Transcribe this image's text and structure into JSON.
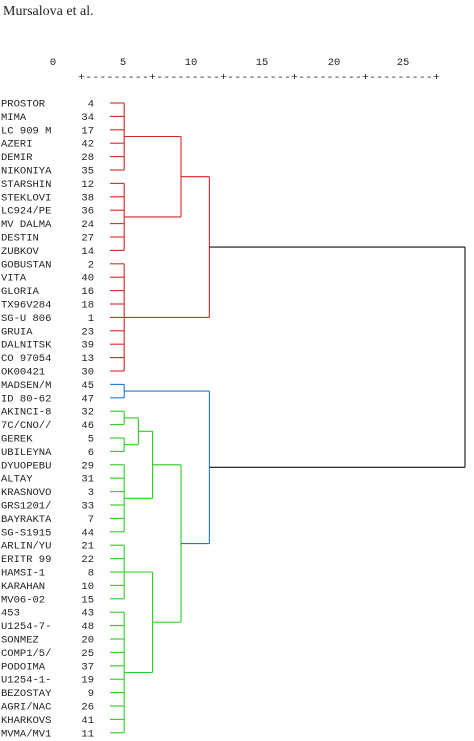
{
  "header": {
    "author": "Mursalova et al."
  },
  "scale": {
    "tick_labels": [
      "0",
      "5",
      "10",
      "15",
      "20",
      "25"
    ],
    "tick_values": [
      0,
      5,
      10,
      15,
      20,
      25
    ],
    "ruler": "+---------+---------+---------+---------+---------+"
  },
  "leaves": [
    {
      "name": "PROSTOR",
      "id": "4"
    },
    {
      "name": "MIMA",
      "id": "34"
    },
    {
      "name": "LC 909 M",
      "id": "17"
    },
    {
      "name": "AZERI",
      "id": "42"
    },
    {
      "name": "DEMIR",
      "id": "28"
    },
    {
      "name": "NIKONIYA",
      "id": "35"
    },
    {
      "name": "STARSHIN",
      "id": "12"
    },
    {
      "name": "STEKLOVI",
      "id": "38"
    },
    {
      "name": "LC924/PE",
      "id": "36"
    },
    {
      "name": "MV DALMA",
      "id": "24"
    },
    {
      "name": "DESTIN",
      "id": "27"
    },
    {
      "name": "ZUBKOV",
      "id": "14"
    },
    {
      "name": "GOBUSTAN",
      "id": "2"
    },
    {
      "name": "VITA",
      "id": "40"
    },
    {
      "name": "GLORIA",
      "id": "16"
    },
    {
      "name": "TX96V284",
      "id": "18"
    },
    {
      "name": "SG-U 806",
      "id": "1"
    },
    {
      "name": "GRUIA",
      "id": "23"
    },
    {
      "name": "DALNITSK",
      "id": "39"
    },
    {
      "name": "CO 97054",
      "id": "13"
    },
    {
      "name": "OK00421",
      "id": "30"
    },
    {
      "name": "MADSEN/M",
      "id": "45"
    },
    {
      "name": "ID 80-62",
      "id": "47"
    },
    {
      "name": "AKINCI-8",
      "id": "32"
    },
    {
      "name": "7C/CNO//",
      "id": "46"
    },
    {
      "name": "GEREK",
      "id": "5"
    },
    {
      "name": "UBILEYNA",
      "id": "6"
    },
    {
      "name": "DYUOPEBU",
      "id": "29"
    },
    {
      "name": "ALTAY",
      "id": "31"
    },
    {
      "name": "KRASNOVO",
      "id": "3"
    },
    {
      "name": "GRS1201/",
      "id": "33"
    },
    {
      "name": "BAYRAKTA",
      "id": "7"
    },
    {
      "name": "SG-S1915",
      "id": "44"
    },
    {
      "name": "ARLIN/YU",
      "id": "21"
    },
    {
      "name": "ERITR 99",
      "id": "22"
    },
    {
      "name": "HAMSI-1",
      "id": "8"
    },
    {
      "name": "KARAHAN",
      "id": "10"
    },
    {
      "name": "MV06-02",
      "id": "15"
    },
    {
      "name": "453",
      "id": "43"
    },
    {
      "name": "U1254-7-",
      "id": "48"
    },
    {
      "name": "SONMEZ",
      "id": "20"
    },
    {
      "name": "COMP1/5/",
      "id": "25"
    },
    {
      "name": "PODOIMA",
      "id": "37"
    },
    {
      "name": "U1254-1-",
      "id": "19"
    },
    {
      "name": "BEZOSTAY",
      "id": "9"
    },
    {
      "name": "AGRI/NAC",
      "id": "26"
    },
    {
      "name": "KHARKOVS",
      "id": "41"
    },
    {
      "name": "MVMA/MV1",
      "id": "11"
    }
  ],
  "clusters": [
    {
      "color": "#d62728",
      "leaf_range": [
        0,
        20
      ]
    },
    {
      "color": "#1f77d4",
      "leaf_range": [
        21,
        22
      ]
    },
    {
      "color": "#2ecc22",
      "leaf_range": [
        23,
        47
      ]
    }
  ],
  "merges": [
    {
      "color": "#d62728",
      "members": [
        0,
        1,
        2,
        3,
        4,
        5
      ],
      "distance": 1
    },
    {
      "color": "#d62728",
      "members": [
        6,
        7,
        8,
        9,
        10,
        11
      ],
      "distance": 1
    },
    {
      "color": "#d62728",
      "members": [
        12,
        13,
        14,
        15,
        16,
        17,
        18,
        19,
        20
      ],
      "distance": 1
    },
    {
      "color": "#d62728",
      "members": [
        [
          0,
          5
        ],
        [
          6,
          11
        ]
      ],
      "distance": 5
    },
    {
      "color": "#d62728",
      "members": [
        [
          0,
          11
        ],
        [
          12,
          20
        ]
      ],
      "distance": 7
    },
    {
      "color": "#1f77d4",
      "members": [
        21,
        22
      ],
      "distance": 1
    },
    {
      "color": "#2ecc22",
      "members": [
        23,
        24
      ],
      "distance": 1
    },
    {
      "color": "#2ecc22",
      "members": [
        25,
        26
      ],
      "distance": 1
    },
    {
      "color": "#2ecc22",
      "members": [
        27,
        28,
        29,
        30,
        31,
        32
      ],
      "distance": 1
    },
    {
      "color": "#2ecc22",
      "members": [
        33,
        34,
        35,
        36,
        37
      ],
      "distance": 1
    },
    {
      "color": "#2ecc22",
      "members": [
        38,
        39,
        40,
        41,
        42,
        43,
        44,
        45,
        46,
        47
      ],
      "distance": 1
    },
    {
      "color": "#2ecc22",
      "members": [
        [
          23,
          24
        ],
        [
          25,
          26
        ]
      ],
      "distance": 2
    },
    {
      "color": "#2ecc22",
      "members": [
        [
          23,
          26
        ],
        [
          27,
          32
        ]
      ],
      "distance": 3
    },
    {
      "color": "#2ecc22",
      "members": [
        [
          33,
          37
        ],
        [
          38,
          47
        ]
      ],
      "distance": 3
    },
    {
      "color": "#2ecc22",
      "members": [
        [
          23,
          32
        ],
        [
          33,
          47
        ]
      ],
      "distance": 5
    },
    {
      "color": "#1f77d4",
      "members": [
        [
          21,
          22
        ],
        [
          23,
          47
        ]
      ],
      "distance": 7
    },
    {
      "color": "#111111",
      "members": [
        [
          0,
          20
        ],
        [
          21,
          47
        ]
      ],
      "distance": 25
    }
  ]
}
